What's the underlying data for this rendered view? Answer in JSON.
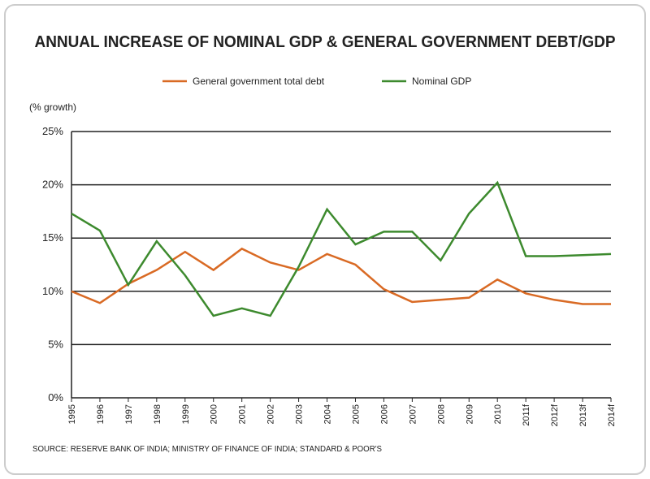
{
  "chart_data": {
    "type": "line",
    "title": "ANNUAL INCREASE OF NOMINAL GDP & GENERAL GOVERNMENT DEBT/GDP",
    "y_label": "(% growth)",
    "source": "SOURCE: RESERVE BANK OF INDIA; MINISTRY OF FINANCE OF INDIA; STANDARD & POOR'S",
    "categories": [
      "1995",
      "1996",
      "1997",
      "1998",
      "1999",
      "2000",
      "2001",
      "2002",
      "2003",
      "2004",
      "2005",
      "2006",
      "2007",
      "2008",
      "2009",
      "2010",
      "2011f",
      "2012f",
      "2013f",
      "2014f"
    ],
    "series": [
      {
        "name": "General government total debt",
        "color": "#d96a24",
        "values": [
          10,
          8.9,
          10.7,
          12,
          13.7,
          12,
          14,
          12.7,
          12,
          13.5,
          12.5,
          10.2,
          9,
          9.2,
          9.4,
          11.1,
          9.8,
          9.2,
          8.8,
          8.8
        ]
      },
      {
        "name": "Nominal GDP",
        "color": "#3d8a2e",
        "values": [
          17.3,
          15.7,
          10.6,
          14.7,
          11.5,
          7.7,
          8.4,
          7.7,
          12.3,
          17.7,
          14.4,
          15.6,
          15.6,
          12.9,
          17.3,
          20.2,
          13.3,
          13.3,
          13.4,
          13.5
        ]
      }
    ],
    "ylim": [
      0,
      25
    ],
    "yticks": [
      {
        "value": 0,
        "label": "0%"
      },
      {
        "value": 5,
        "label": "5%"
      },
      {
        "value": 10,
        "label": "10%"
      },
      {
        "value": 15,
        "label": "15%"
      },
      {
        "value": 20,
        "label": "20%"
      },
      {
        "value": 25,
        "label": "25%"
      }
    ],
    "grid": true
  }
}
